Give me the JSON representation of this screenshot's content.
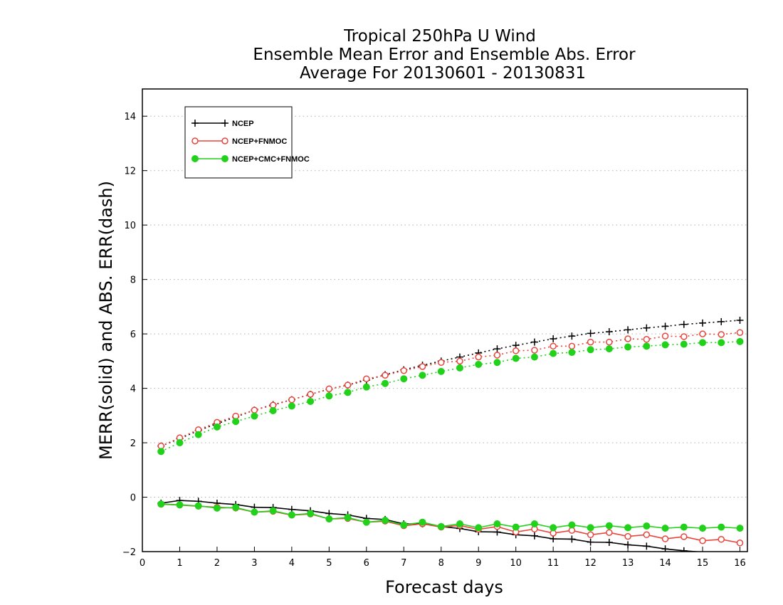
{
  "chart_data": {
    "type": "line",
    "title": [
      "Tropical 250hPa U Wind",
      "Ensemble Mean Error and Ensemble Abs. Error",
      "Average For 20130601 - 20130831"
    ],
    "xlabel": "Forecast days",
    "ylabel": "MERR(solid) and ABS. ERR(dash)",
    "xlim": [
      0,
      16.2
    ],
    "ylim": [
      -2,
      15
    ],
    "xticks": [
      0,
      1,
      2,
      3,
      4,
      5,
      6,
      7,
      8,
      9,
      10,
      11,
      12,
      13,
      14,
      15,
      16
    ],
    "yticks": [
      -2,
      0,
      2,
      4,
      6,
      8,
      10,
      12,
      14
    ],
    "ytick_labels": [
      "−2",
      "0",
      "2",
      "4",
      "6",
      "8",
      "10",
      "12",
      "14"
    ],
    "grid": "horizontal dotted",
    "legend_position": "top-left",
    "x": [
      0.5,
      1,
      1.5,
      2,
      2.5,
      3,
      3.5,
      4,
      4.5,
      5,
      5.5,
      6,
      6.5,
      7,
      7.5,
      8,
      8.5,
      9,
      9.5,
      10,
      10.5,
      11,
      11.5,
      12,
      12.5,
      13,
      13.5,
      14,
      14.5,
      15,
      15.5,
      16
    ],
    "series": [
      {
        "name": "NCEP",
        "color": "#000000",
        "marker": "plus",
        "mean_error": [
          -0.22,
          -0.12,
          -0.15,
          -0.22,
          -0.27,
          -0.37,
          -0.38,
          -0.45,
          -0.5,
          -0.6,
          -0.65,
          -0.78,
          -0.82,
          -0.98,
          -0.98,
          -1.08,
          -1.15,
          -1.27,
          -1.28,
          -1.38,
          -1.42,
          -1.53,
          -1.54,
          -1.65,
          -1.66,
          -1.75,
          -1.8,
          -1.9,
          -1.97,
          -2.02,
          -2.07,
          -2.12
        ],
        "abs_error": [
          1.88,
          2.15,
          2.45,
          2.7,
          2.95,
          3.2,
          3.4,
          3.58,
          3.78,
          3.97,
          4.12,
          4.3,
          4.5,
          4.68,
          4.85,
          5.0,
          5.15,
          5.3,
          5.45,
          5.58,
          5.7,
          5.82,
          5.92,
          6.02,
          6.08,
          6.15,
          6.22,
          6.28,
          6.35,
          6.4,
          6.45,
          6.5
        ]
      },
      {
        "name": "NCEP+FNMOC",
        "color": "#e8453c",
        "marker": "open-circle",
        "mean_error": [
          -0.26,
          -0.29,
          -0.33,
          -0.37,
          -0.4,
          -0.55,
          -0.52,
          -0.66,
          -0.62,
          -0.8,
          -0.78,
          -0.92,
          -0.88,
          -1.05,
          -0.98,
          -1.1,
          -1.04,
          -1.18,
          -1.08,
          -1.28,
          -1.17,
          -1.32,
          -1.22,
          -1.38,
          -1.3,
          -1.44,
          -1.38,
          -1.53,
          -1.45,
          -1.6,
          -1.55,
          -1.68
        ],
        "abs_error": [
          1.88,
          2.18,
          2.48,
          2.75,
          2.98,
          3.2,
          3.38,
          3.58,
          3.78,
          3.98,
          4.12,
          4.35,
          4.48,
          4.65,
          4.8,
          4.95,
          5.0,
          5.15,
          5.22,
          5.38,
          5.4,
          5.55,
          5.55,
          5.7,
          5.7,
          5.82,
          5.8,
          5.92,
          5.9,
          6.0,
          5.98,
          6.05
        ]
      },
      {
        "name": "NCEP+CMC+FNMOC",
        "color": "#22d11a",
        "marker": "filled-circle",
        "mean_error": [
          -0.25,
          -0.28,
          -0.32,
          -0.4,
          -0.38,
          -0.55,
          -0.5,
          -0.65,
          -0.6,
          -0.8,
          -0.75,
          -0.92,
          -0.85,
          -1.02,
          -0.92,
          -1.08,
          -0.98,
          -1.12,
          -0.98,
          -1.1,
          -0.98,
          -1.12,
          -1.02,
          -1.12,
          -1.05,
          -1.12,
          -1.06,
          -1.14,
          -1.1,
          -1.14,
          -1.1,
          -1.14
        ],
        "abs_error": [
          1.68,
          2.0,
          2.3,
          2.58,
          2.78,
          2.98,
          3.18,
          3.35,
          3.52,
          3.72,
          3.85,
          4.05,
          4.18,
          4.35,
          4.48,
          4.62,
          4.75,
          4.88,
          4.95,
          5.1,
          5.15,
          5.28,
          5.32,
          5.42,
          5.45,
          5.52,
          5.55,
          5.6,
          5.62,
          5.68,
          5.68,
          5.72
        ]
      }
    ]
  }
}
